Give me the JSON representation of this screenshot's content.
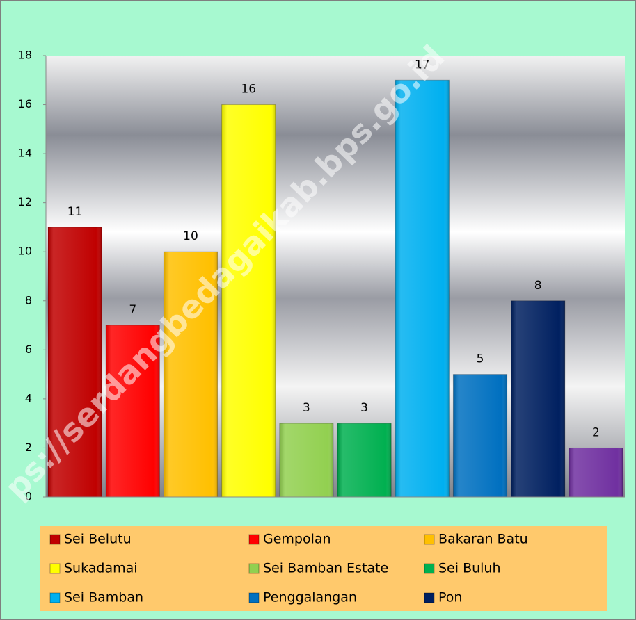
{
  "chart_data": {
    "type": "bar",
    "categories": [
      "Sei Belutu",
      "Gempolan",
      "Bakaran Batu",
      "Sukadamai",
      "Sei Bamban Estate",
      "Sei Buluh",
      "Sei Bamban",
      "Penggalangan",
      "Pon",
      null
    ],
    "values": [
      11,
      7,
      10,
      16,
      3,
      3,
      17,
      5,
      8,
      2
    ],
    "colors": [
      "#c00000",
      "#ff0000",
      "#ffc000",
      "#ffff00",
      "#92d050",
      "#00b050",
      "#00b0f0",
      "#0070c0",
      "#002060",
      "#7030a0"
    ],
    "ylim": [
      0,
      18
    ],
    "yticks": [
      0,
      2,
      4,
      6,
      8,
      10,
      12,
      14,
      16,
      18
    ],
    "watermark": "ps://serdangbedagaikab.bps.go.id"
  }
}
